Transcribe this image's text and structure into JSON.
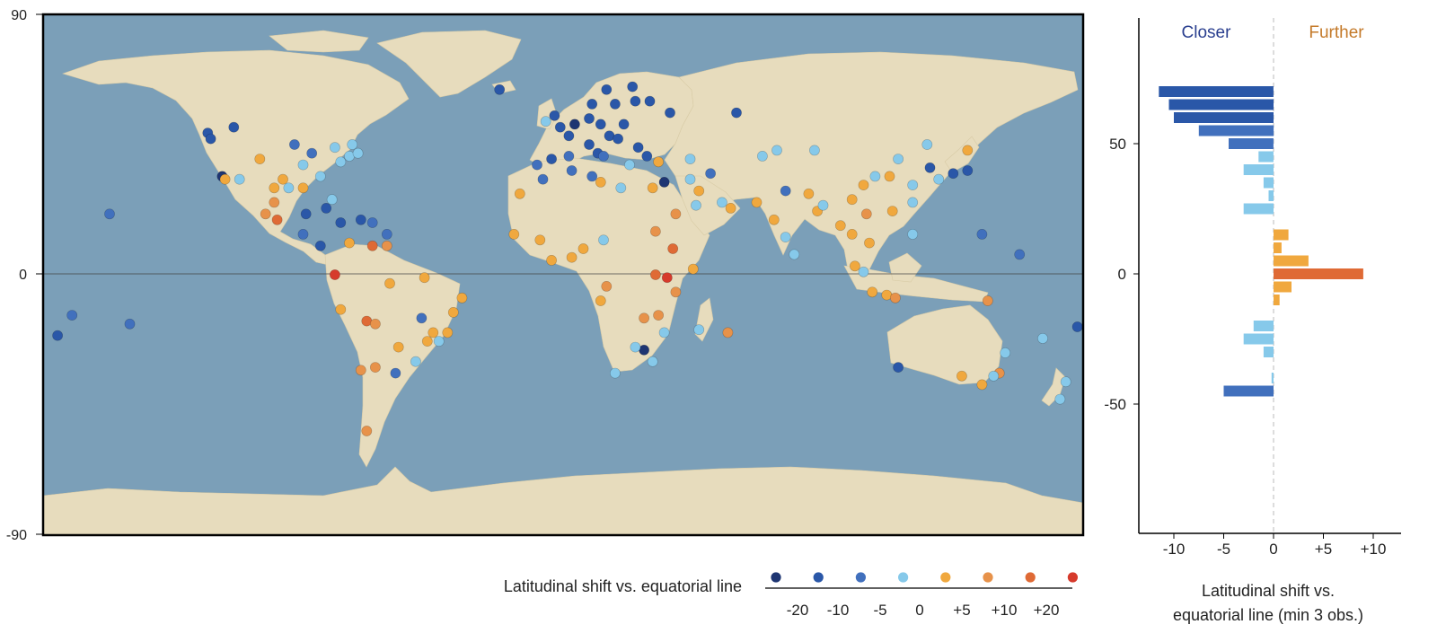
{
  "map": {
    "y_ticks": [
      "90",
      "0",
      "-90"
    ],
    "ocean_color": "#7b9fb8",
    "land_color": "#e7dcbd",
    "equator": 0
  },
  "palette": {
    "-20": "#1e3572",
    "-15": "#2a57a8",
    "-10": "#4170bd",
    "-5": "#86c9ea",
    "5": "#f0a83e",
    "10": "#e7924a",
    "15": "#df6a35",
    "20": "#d63a2c"
  },
  "legend": {
    "title": "Latitudinal shift vs. equatorial line",
    "classes": [
      -20,
      -15,
      -10,
      -5,
      5,
      10,
      15,
      20
    ],
    "tick_labels": [
      "-20",
      "-10",
      "-5",
      "0",
      "+5",
      "+10",
      "+20"
    ]
  },
  "bar_chart": {
    "type": "bar",
    "orientation": "horizontal",
    "label_left": "Closer",
    "label_right": "Further",
    "label_left_color": "#2a3f8f",
    "label_right_color": "#c47a2a",
    "xlabel_line1": "Latitudinal shift vs.",
    "xlabel_line2": "equatorial line (min 3 obs.)",
    "x_ticks": [
      "-10",
      "-5",
      "0",
      "+5",
      "+10"
    ],
    "y_ticks": [
      "50",
      "0",
      "-50"
    ],
    "xlim": [
      -13,
      13
    ],
    "ylim": [
      -90,
      90
    ]
  },
  "chart_data": {
    "type": "bar",
    "orientation": "horizontal",
    "ylabel": "",
    "xlabel": "Latitudinal shift vs. equatorial line (min 3 obs.)",
    "bars": [
      {
        "lat": 70,
        "value": -11.5
      },
      {
        "lat": 65,
        "value": -10.5
      },
      {
        "lat": 60,
        "value": -10.0
      },
      {
        "lat": 55,
        "value": -7.5
      },
      {
        "lat": 50,
        "value": -4.5
      },
      {
        "lat": 45,
        "value": -1.5
      },
      {
        "lat": 40,
        "value": -3.0
      },
      {
        "lat": 35,
        "value": -1.0
      },
      {
        "lat": 30,
        "value": -0.5
      },
      {
        "lat": 25,
        "value": -3.0
      },
      {
        "lat": 15,
        "value": 1.5
      },
      {
        "lat": 10,
        "value": 0.8
      },
      {
        "lat": 5,
        "value": 3.5
      },
      {
        "lat": 0,
        "value": 9.0
      },
      {
        "lat": -5,
        "value": 1.8
      },
      {
        "lat": -10,
        "value": 0.6
      },
      {
        "lat": -20,
        "value": -2.0
      },
      {
        "lat": -25,
        "value": -3.0
      },
      {
        "lat": -30,
        "value": -1.0
      },
      {
        "lat": -40,
        "value": -0.2
      },
      {
        "lat": -45,
        "value": -5.0
      }
    ]
  },
  "points": [
    {
      "lon": -123,
      "lat": 49,
      "v": -15
    },
    {
      "lon": -122,
      "lat": 47,
      "v": -15
    },
    {
      "lon": -114,
      "lat": 51,
      "v": -15
    },
    {
      "lon": -118,
      "lat": 34,
      "v": -20
    },
    {
      "lon": -117,
      "lat": 33,
      "v": 5
    },
    {
      "lon": -112,
      "lat": 33,
      "v": -5
    },
    {
      "lon": -105,
      "lat": 40,
      "v": 5
    },
    {
      "lon": -97,
      "lat": 33,
      "v": 5
    },
    {
      "lon": -95,
      "lat": 30,
      "v": -5
    },
    {
      "lon": -90,
      "lat": 30,
      "v": 5
    },
    {
      "lon": -87,
      "lat": 42,
      "v": -10
    },
    {
      "lon": -84,
      "lat": 34,
      "v": -5
    },
    {
      "lon": -80,
      "lat": 26,
      "v": -5
    },
    {
      "lon": -77,
      "lat": 39,
      "v": -5
    },
    {
      "lon": -74,
      "lat": 41,
      "v": -5
    },
    {
      "lon": -71,
      "lat": 42,
      "v": -5
    },
    {
      "lon": -79,
      "lat": 44,
      "v": -5
    },
    {
      "lon": -73,
      "lat": 45,
      "v": -5
    },
    {
      "lon": -90,
      "lat": 38,
      "v": -5
    },
    {
      "lon": -93,
      "lat": 45,
      "v": -10
    },
    {
      "lon": -100,
      "lat": 30,
      "v": 5
    },
    {
      "lon": -99,
      "lat": 19,
      "v": 15
    },
    {
      "lon": -103,
      "lat": 21,
      "v": 10
    },
    {
      "lon": -100,
      "lat": 25,
      "v": 10
    },
    {
      "lon": -89,
      "lat": 21,
      "v": -15
    },
    {
      "lon": -84,
      "lat": 10,
      "v": -15
    },
    {
      "lon": -90,
      "lat": 14,
      "v": -10
    },
    {
      "lon": -82,
      "lat": 23,
      "v": -15
    },
    {
      "lon": -77,
      "lat": 18,
      "v": -15
    },
    {
      "lon": -70,
      "lat": 19,
      "v": -15
    },
    {
      "lon": -66,
      "lat": 18,
      "v": -10
    },
    {
      "lon": -61,
      "lat": 14,
      "v": -10
    },
    {
      "lon": -61,
      "lat": 10,
      "v": 10
    },
    {
      "lon": -74,
      "lat": 11,
      "v": 5
    },
    {
      "lon": -66,
      "lat": 10,
      "v": 15
    },
    {
      "lon": -79,
      "lat": 0,
      "v": 20
    },
    {
      "lon": -77,
      "lat": -12,
      "v": 5
    },
    {
      "lon": -68,
      "lat": -16,
      "v": 15
    },
    {
      "lon": -65,
      "lat": -17,
      "v": 10
    },
    {
      "lon": -57,
      "lat": -25,
      "v": 5
    },
    {
      "lon": -58,
      "lat": -34,
      "v": -10
    },
    {
      "lon": -47,
      "lat": -23,
      "v": 5
    },
    {
      "lon": -43,
      "lat": -23,
      "v": -5
    },
    {
      "lon": -49,
      "lat": -15,
      "v": -10
    },
    {
      "lon": -38,
      "lat": -13,
      "v": 5
    },
    {
      "lon": -35,
      "lat": -8,
      "v": 5
    },
    {
      "lon": -48,
      "lat": -1,
      "v": 5
    },
    {
      "lon": -60,
      "lat": -3,
      "v": 5
    },
    {
      "lon": -51,
      "lat": -30,
      "v": -5
    },
    {
      "lon": -65,
      "lat": -32,
      "v": 10
    },
    {
      "lon": -70,
      "lat": -33,
      "v": 10
    },
    {
      "lon": -68,
      "lat": -54,
      "v": 10
    },
    {
      "lon": -45,
      "lat": -20,
      "v": 5
    },
    {
      "lon": -40,
      "lat": -20,
      "v": 5
    },
    {
      "lon": -157,
      "lat": 21,
      "v": -10
    },
    {
      "lon": -150,
      "lat": -17,
      "v": -10
    },
    {
      "lon": -170,
      "lat": -14,
      "v": -10
    },
    {
      "lon": -175,
      "lat": -21,
      "v": -15
    },
    {
      "lon": -22,
      "lat": 64,
      "v": -15
    },
    {
      "lon": -17,
      "lat": 14,
      "v": 5
    },
    {
      "lon": -15,
      "lat": 28,
      "v": 5
    },
    {
      "lon": -9,
      "lat": 38,
      "v": -10
    },
    {
      "lon": -4,
      "lat": 40,
      "v": -15
    },
    {
      "lon": 2,
      "lat": 41,
      "v": -10
    },
    {
      "lon": 2,
      "lat": 48,
      "v": -15
    },
    {
      "lon": -1,
      "lat": 51,
      "v": -15
    },
    {
      "lon": -3,
      "lat": 55,
      "v": -15
    },
    {
      "lon": -6,
      "lat": 53,
      "v": -5
    },
    {
      "lon": 4,
      "lat": 52,
      "v": -20
    },
    {
      "lon": 9,
      "lat": 54,
      "v": -15
    },
    {
      "lon": 13,
      "lat": 52,
      "v": -15
    },
    {
      "lon": 10,
      "lat": 59,
      "v": -15
    },
    {
      "lon": 18,
      "lat": 59,
      "v": -15
    },
    {
      "lon": 25,
      "lat": 60,
      "v": -15
    },
    {
      "lon": 24,
      "lat": 65,
      "v": -15
    },
    {
      "lon": 15,
      "lat": 64,
      "v": -15
    },
    {
      "lon": 30,
      "lat": 60,
      "v": -15
    },
    {
      "lon": 37,
      "lat": 56,
      "v": -15
    },
    {
      "lon": 21,
      "lat": 52,
      "v": -15
    },
    {
      "lon": 16,
      "lat": 48,
      "v": -15
    },
    {
      "lon": 19,
      "lat": 47,
      "v": -15
    },
    {
      "lon": 26,
      "lat": 44,
      "v": -15
    },
    {
      "lon": 12,
      "lat": 42,
      "v": -15
    },
    {
      "lon": 14,
      "lat": 41,
      "v": -10
    },
    {
      "lon": 9,
      "lat": 45,
      "v": -15
    },
    {
      "lon": 23,
      "lat": 38,
      "v": -5
    },
    {
      "lon": 29,
      "lat": 41,
      "v": -15
    },
    {
      "lon": 33,
      "lat": 39,
      "v": 5
    },
    {
      "lon": 35,
      "lat": 32,
      "v": -20
    },
    {
      "lon": 31,
      "lat": 30,
      "v": 5
    },
    {
      "lon": 39,
      "lat": 21,
      "v": 10
    },
    {
      "lon": 46,
      "lat": 24,
      "v": -5
    },
    {
      "lon": 55,
      "lat": 25,
      "v": -5
    },
    {
      "lon": 51,
      "lat": 35,
      "v": -10
    },
    {
      "lon": 44,
      "lat": 33,
      "v": -5
    },
    {
      "lon": 44,
      "lat": 40,
      "v": -5
    },
    {
      "lon": 69,
      "lat": 41,
      "v": -5
    },
    {
      "lon": 67,
      "lat": 25,
      "v": 5
    },
    {
      "lon": 73,
      "lat": 19,
      "v": 5
    },
    {
      "lon": 77,
      "lat": 29,
      "v": -10
    },
    {
      "lon": 77,
      "lat": 13,
      "v": -5
    },
    {
      "lon": 80,
      "lat": 7,
      "v": -5
    },
    {
      "lon": 88,
      "lat": 22,
      "v": 5
    },
    {
      "lon": 85,
      "lat": 28,
      "v": 5
    },
    {
      "lon": 90,
      "lat": 24,
      "v": -5
    },
    {
      "lon": 96,
      "lat": 17,
      "v": 5
    },
    {
      "lon": 100,
      "lat": 14,
      "v": 5
    },
    {
      "lon": 105,
      "lat": 21,
      "v": 10
    },
    {
      "lon": 106,
      "lat": 11,
      "v": 5
    },
    {
      "lon": 101,
      "lat": 3,
      "v": 5
    },
    {
      "lon": 104,
      "lat": 1,
      "v": -5
    },
    {
      "lon": 107,
      "lat": -6,
      "v": 5
    },
    {
      "lon": 112,
      "lat": -7,
      "v": 5
    },
    {
      "lon": 115,
      "lat": -8,
      "v": 10
    },
    {
      "lon": 121,
      "lat": 14,
      "v": -5
    },
    {
      "lon": 114,
      "lat": 22,
      "v": 5
    },
    {
      "lon": 121,
      "lat": 25,
      "v": -5
    },
    {
      "lon": 121,
      "lat": 31,
      "v": -5
    },
    {
      "lon": 116,
      "lat": 40,
      "v": -5
    },
    {
      "lon": 113,
      "lat": 34,
      "v": 5
    },
    {
      "lon": 104,
      "lat": 31,
      "v": 5
    },
    {
      "lon": 108,
      "lat": 34,
      "v": -5
    },
    {
      "lon": 127,
      "lat": 37,
      "v": -15
    },
    {
      "lon": 135,
      "lat": 35,
      "v": -15
    },
    {
      "lon": 140,
      "lat": 36,
      "v": -15
    },
    {
      "lon": 130,
      "lat": 33,
      "v": -5
    },
    {
      "lon": 126,
      "lat": 45,
      "v": -5
    },
    {
      "lon": 140,
      "lat": 43,
      "v": 5
    },
    {
      "lon": 145,
      "lat": 14,
      "v": -10
    },
    {
      "lon": 158,
      "lat": 7,
      "v": -10
    },
    {
      "lon": 147,
      "lat": -9,
      "v": 10
    },
    {
      "lon": 116,
      "lat": -32,
      "v": -15
    },
    {
      "lon": 138,
      "lat": -35,
      "v": 5
    },
    {
      "lon": 145,
      "lat": -38,
      "v": 5
    },
    {
      "lon": 151,
      "lat": -34,
      "v": 10
    },
    {
      "lon": 153,
      "lat": -27,
      "v": -5
    },
    {
      "lon": 149,
      "lat": -35,
      "v": -5
    },
    {
      "lon": 174,
      "lat": -37,
      "v": -5
    },
    {
      "lon": 172,
      "lat": -43,
      "v": -5
    },
    {
      "lon": 178,
      "lat": -18,
      "v": -15
    },
    {
      "lon": 166,
      "lat": -22,
      "v": -5
    },
    {
      "lon": 18,
      "lat": -34,
      "v": -5
    },
    {
      "lon": 28,
      "lat": -26,
      "v": -20
    },
    {
      "lon": 31,
      "lat": -30,
      "v": -5
    },
    {
      "lon": 25,
      "lat": -25,
      "v": -5
    },
    {
      "lon": 36,
      "lat": -1,
      "v": 20
    },
    {
      "lon": 32,
      "lat": 0,
      "v": 15
    },
    {
      "lon": 39,
      "lat": -6,
      "v": 10
    },
    {
      "lon": 33,
      "lat": -14,
      "v": 10
    },
    {
      "lon": 28,
      "lat": -15,
      "v": 10
    },
    {
      "lon": 35,
      "lat": -20,
      "v": -5
    },
    {
      "lon": 47,
      "lat": -19,
      "v": -5
    },
    {
      "lon": 57,
      "lat": -20,
      "v": 10
    },
    {
      "lon": 15,
      "lat": -4,
      "v": 10
    },
    {
      "lon": 13,
      "lat": -9,
      "v": 5
    },
    {
      "lon": 3,
      "lat": 6,
      "v": 5
    },
    {
      "lon": 7,
      "lat": 9,
      "v": 5
    },
    {
      "lon": -4,
      "lat": 5,
      "v": 5
    },
    {
      "lon": -8,
      "lat": 12,
      "v": 5
    },
    {
      "lon": 14,
      "lat": 12,
      "v": -5
    },
    {
      "lon": 32,
      "lat": 15,
      "v": 10
    },
    {
      "lon": 38,
      "lat": 9,
      "v": 15
    },
    {
      "lon": 45,
      "lat": 2,
      "v": 5
    },
    {
      "lon": 10,
      "lat": 34,
      "v": -10
    },
    {
      "lon": 3,
      "lat": 36,
      "v": -10
    },
    {
      "lon": -7,
      "lat": 33,
      "v": -10
    },
    {
      "lon": 13,
      "lat": 32,
      "v": 5
    },
    {
      "lon": 20,
      "lat": 30,
      "v": -5
    },
    {
      "lon": 47,
      "lat": 29,
      "v": 5
    },
    {
      "lon": 58,
      "lat": 23,
      "v": 5
    },
    {
      "lon": 60,
      "lat": 56,
      "v": -15
    },
    {
      "lon": 74,
      "lat": 43,
      "v": -5
    },
    {
      "lon": 87,
      "lat": 43,
      "v": -5
    },
    {
      "lon": 100,
      "lat": 26,
      "v": 5
    }
  ]
}
